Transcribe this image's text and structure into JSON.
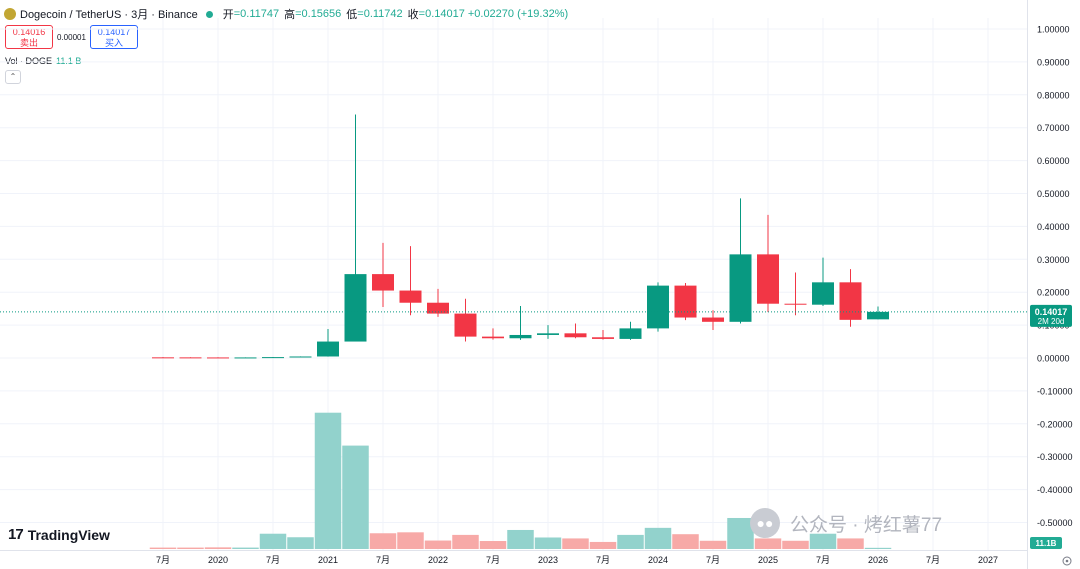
{
  "header": {
    "symbol": "Dogecoin / TetherUS · 3月 · Binance",
    "open_label": "开",
    "open": "=0.11747",
    "high_label": "高",
    "high": "=0.15656",
    "low_label": "低",
    "low": "=0.11742",
    "close_label": "收",
    "close": "=0.14017",
    "change": "+0.02270 (+19.32%)"
  },
  "trade": {
    "sell_price": "0.14016",
    "sell_label": "卖出",
    "spread": "0.00001",
    "buy_price": "0.14017",
    "buy_label": "买入"
  },
  "volume": {
    "label": "Vol · DOGE",
    "value": "11.1 B"
  },
  "collapse_glyph": "⌃",
  "branding": {
    "logo_glyph": "17",
    "name": "TradingView"
  },
  "watermark": {
    "icon": "wechat-icon",
    "text": "公众号 · 烤红薯77"
  },
  "colors": {
    "up": "#089981",
    "down": "#f23645",
    "vol_up": "#92d2cc",
    "vol_down": "#f7a9a7"
  },
  "chart_data": {
    "type": "candlestick",
    "ylim": [
      -0.57,
      1.03
    ],
    "y_ticks": [
      1.0,
      0.9,
      0.8,
      0.7,
      0.6,
      0.5,
      0.4,
      0.3,
      0.2,
      0.1,
      0.0,
      -0.1,
      -0.2,
      -0.3,
      -0.4,
      -0.5
    ],
    "y_tick_labels": [
      "1.00000",
      "0.90000",
      "0.80000",
      "0.70000",
      "0.60000",
      "0.50000",
      "0.40000",
      "0.30000",
      "0.20000",
      "0.10000",
      "0.00000",
      "-0.10000",
      "-0.20000",
      "-0.30000",
      "-0.40000",
      "-0.50000"
    ],
    "x_labels": [
      "7月",
      "2020",
      "7月",
      "2021",
      "7月",
      "2022",
      "7月",
      "2023",
      "7月",
      "2024",
      "7月",
      "2025",
      "7月",
      "2026",
      "7月",
      "2027"
    ],
    "last_price": 0.14017,
    "last_price_label": "0.14017",
    "countdown_label": "2M 20d",
    "volume_label": "11.1B",
    "candles": [
      {
        "o": 0.002,
        "h": 0.0025,
        "l": 0.0015,
        "c": 0.0018
      },
      {
        "o": 0.0019,
        "h": 0.0022,
        "l": 0.0013,
        "c": 0.0016
      },
      {
        "o": 0.0017,
        "h": 0.0021,
        "l": 0.0012,
        "c": 0.0015
      },
      {
        "o": 0.0015,
        "h": 0.002,
        "l": 0.0012,
        "c": 0.0017
      },
      {
        "o": 0.0017,
        "h": 0.003,
        "l": 0.0015,
        "c": 0.0027
      },
      {
        "o": 0.0026,
        "h": 0.005,
        "l": 0.0022,
        "c": 0.0046
      },
      {
        "o": 0.0046,
        "h": 0.088,
        "l": 0.004,
        "c": 0.05
      },
      {
        "o": 0.05,
        "h": 0.74,
        "l": 0.05,
        "c": 0.255
      },
      {
        "o": 0.255,
        "h": 0.35,
        "l": 0.155,
        "c": 0.205
      },
      {
        "o": 0.205,
        "h": 0.34,
        "l": 0.13,
        "c": 0.168
      },
      {
        "o": 0.168,
        "h": 0.21,
        "l": 0.125,
        "c": 0.135
      },
      {
        "o": 0.135,
        "h": 0.18,
        "l": 0.05,
        "c": 0.065
      },
      {
        "o": 0.065,
        "h": 0.09,
        "l": 0.056,
        "c": 0.06
      },
      {
        "o": 0.06,
        "h": 0.158,
        "l": 0.055,
        "c": 0.07
      },
      {
        "o": 0.07,
        "h": 0.1,
        "l": 0.058,
        "c": 0.075
      },
      {
        "o": 0.075,
        "h": 0.105,
        "l": 0.06,
        "c": 0.063
      },
      {
        "o": 0.063,
        "h": 0.085,
        "l": 0.056,
        "c": 0.058
      },
      {
        "o": 0.058,
        "h": 0.11,
        "l": 0.055,
        "c": 0.09
      },
      {
        "o": 0.09,
        "h": 0.23,
        "l": 0.08,
        "c": 0.22
      },
      {
        "o": 0.22,
        "h": 0.228,
        "l": 0.115,
        "c": 0.123
      },
      {
        "o": 0.123,
        "h": 0.145,
        "l": 0.085,
        "c": 0.11
      },
      {
        "o": 0.11,
        "h": 0.485,
        "l": 0.105,
        "c": 0.315
      },
      {
        "o": 0.315,
        "h": 0.435,
        "l": 0.14,
        "c": 0.165
      },
      {
        "o": 0.165,
        "h": 0.26,
        "l": 0.13,
        "c": 0.162
      },
      {
        "o": 0.162,
        "h": 0.305,
        "l": 0.158,
        "c": 0.23
      },
      {
        "o": 0.23,
        "h": 0.27,
        "l": 0.095,
        "c": 0.116
      },
      {
        "o": 0.1175,
        "h": 0.1566,
        "l": 0.1174,
        "c": 0.1402
      }
    ],
    "volume": [
      0.6,
      0.6,
      0.7,
      0.6,
      6.5,
      5.0,
      58,
      44,
      6.7,
      7.1,
      3.6,
      6.0,
      3.4,
      8.1,
      4.9,
      4.5,
      3.0,
      6.0,
      9.0,
      6.3,
      3.5,
      13.2,
      4.5,
      3.5,
      6.5,
      4.5,
      0.5
    ]
  }
}
